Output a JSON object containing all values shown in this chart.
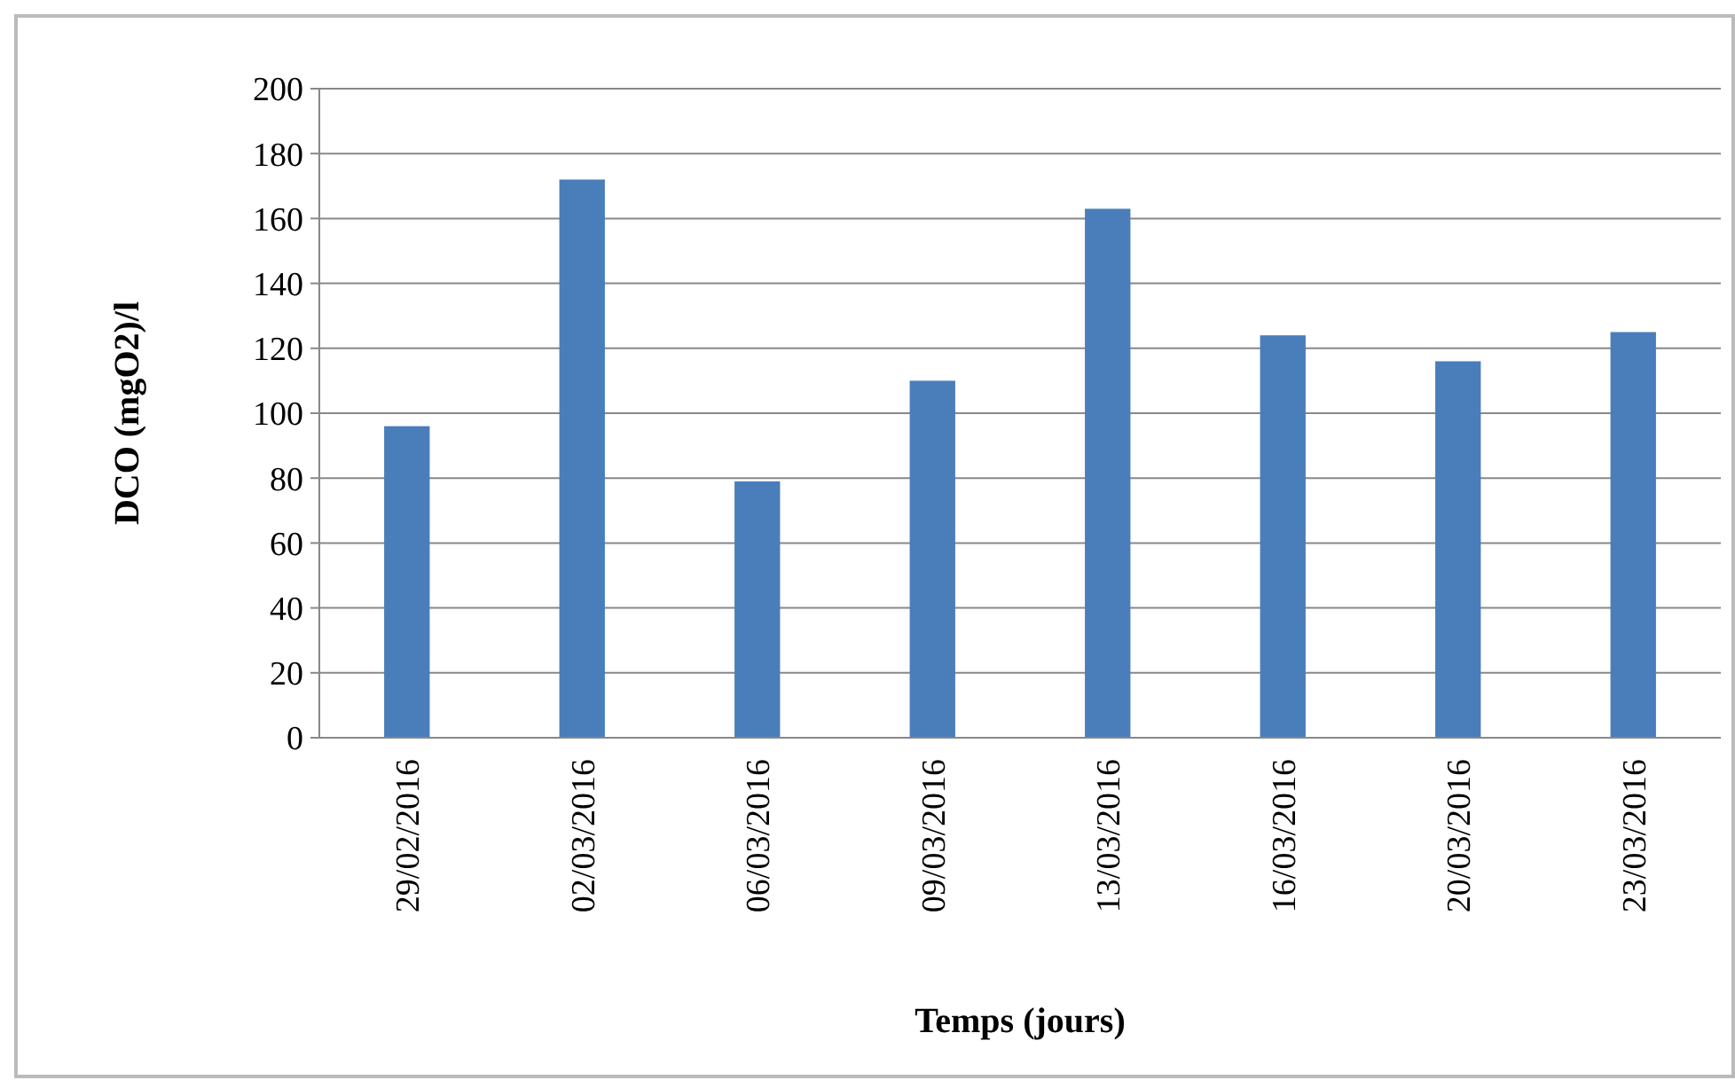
{
  "chart_data": {
    "type": "bar",
    "xlabel": "Temps (jours)",
    "ylabel": "DCO (mgO2)/l",
    "categories": [
      "29/02/2016",
      "02/03/2016",
      "06/03/2016",
      "09/03/2016",
      "13/03/2016",
      "16/03/2016",
      "20/03/2016",
      "23/03/2016"
    ],
    "values": [
      96,
      172,
      79,
      110,
      163,
      124,
      116,
      125
    ],
    "color": "#4a7ebb",
    "ylim": [
      0,
      200
    ],
    "yticks": [
      0,
      20,
      40,
      60,
      80,
      100,
      120,
      140,
      160,
      180,
      200
    ],
    "grid": "y"
  }
}
